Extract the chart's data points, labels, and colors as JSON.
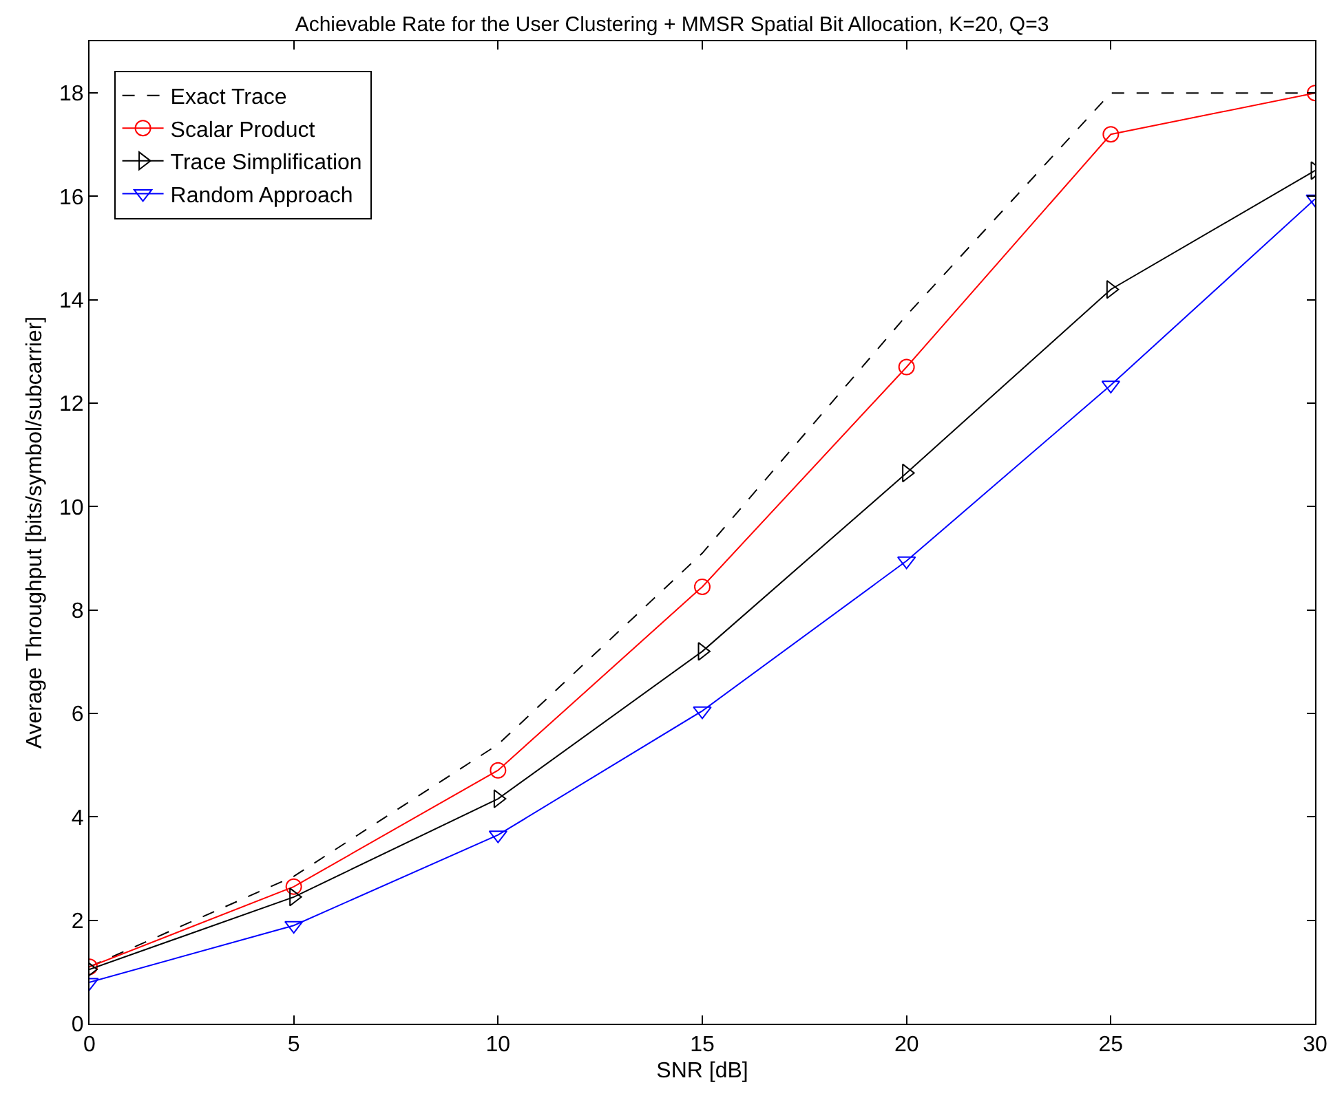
{
  "chart_data": {
    "type": "line",
    "title": "Achievable Rate for the User Clustering + MMSR Spatial Bit Allocation, K=20, Q=3",
    "xlabel": "SNR [dB]",
    "ylabel": "Average Throughput [bits/symbol/subcarrier]",
    "x": [
      0,
      5,
      10,
      15,
      20,
      25,
      30
    ],
    "series": [
      {
        "name": "Exact Trace",
        "color": "#000000",
        "line_style": "dashed",
        "marker": "none",
        "values": [
          1.1,
          2.85,
          5.4,
          9.1,
          13.7,
          18,
          18
        ]
      },
      {
        "name": "Scalar Product",
        "color": "#ff0000",
        "line_style": "solid",
        "marker": "circle",
        "values": [
          1.1,
          2.65,
          4.9,
          8.45,
          12.7,
          17.2,
          18
        ]
      },
      {
        "name": "Trace Simplification",
        "color": "#000000",
        "line_style": "solid",
        "marker": "triangle-right",
        "values": [
          1.05,
          2.45,
          4.35,
          7.2,
          10.65,
          14.2,
          16.5
        ]
      },
      {
        "name": "Random Approach",
        "color": "#0000ff",
        "line_style": "solid",
        "marker": "triangle-down",
        "values": [
          0.8,
          1.9,
          3.65,
          6.05,
          8.95,
          12.35,
          15.95
        ]
      }
    ],
    "xlim": [
      0,
      30
    ],
    "xticks": [
      0,
      5,
      10,
      15,
      20,
      25,
      30
    ],
    "ylim": [
      0,
      19
    ],
    "yticks": [
      0,
      2,
      4,
      6,
      8,
      10,
      12,
      14,
      16,
      18
    ],
    "legend": "top left"
  }
}
